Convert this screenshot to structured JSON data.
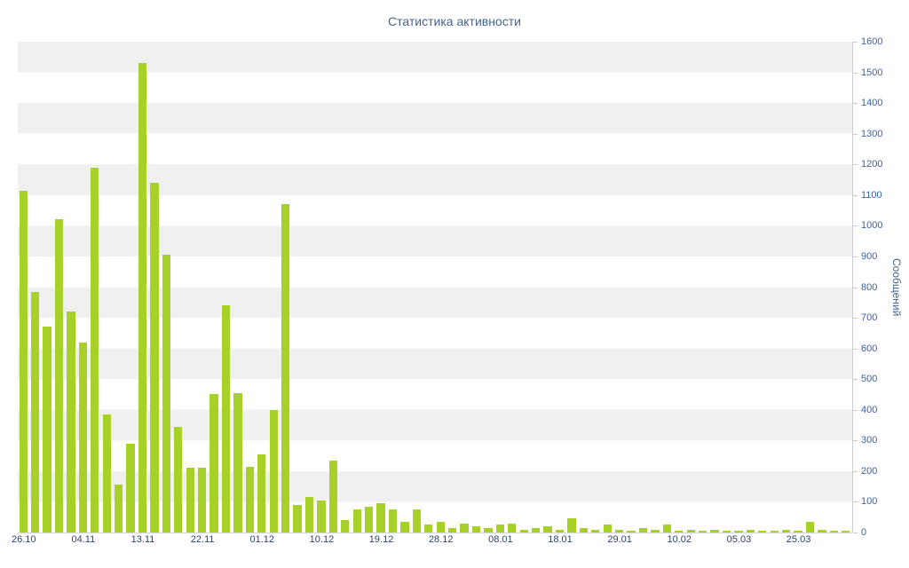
{
  "chart_data": {
    "type": "bar",
    "title": "Статистика активности",
    "ylabel": "Сообщений",
    "ylim": [
      0,
      1600
    ],
    "y_tick_step": 100,
    "grid": "striped-horizontal-bands",
    "legend": "none",
    "values": [
      1115,
      785,
      670,
      1020,
      720,
      620,
      1190,
      385,
      155,
      290,
      1530,
      1140,
      905,
      345,
      210,
      210,
      450,
      740,
      455,
      215,
      255,
      400,
      1070,
      90,
      115,
      105,
      235,
      40,
      75,
      85,
      95,
      75,
      35,
      75,
      25,
      35,
      15,
      30,
      20,
      15,
      25,
      30,
      10,
      15,
      20,
      10,
      45,
      15,
      10,
      25,
      10,
      5,
      15,
      10,
      25,
      5,
      10,
      5,
      10,
      5,
      5,
      10,
      5,
      5,
      10,
      5,
      35,
      10,
      5,
      5
    ],
    "x_tick_labels": [
      "26.10",
      "04.11",
      "13.11",
      "22.11",
      "01.12",
      "10.12",
      "19.12",
      "28.12",
      "08.01",
      "18.01",
      "29.01",
      "10.02",
      "05.03",
      "25.03"
    ],
    "x_tick_interval": 5,
    "colors": {
      "bar": "#a7d129",
      "stripe": "#f0f0f0",
      "band_alt": "#ffffff",
      "axis_line": "#cccccc",
      "y_tick_label": "#3a63a8",
      "x_tick_label": "#2d4372",
      "title": "#46648f",
      "y_axis_title": "#46648f"
    }
  }
}
